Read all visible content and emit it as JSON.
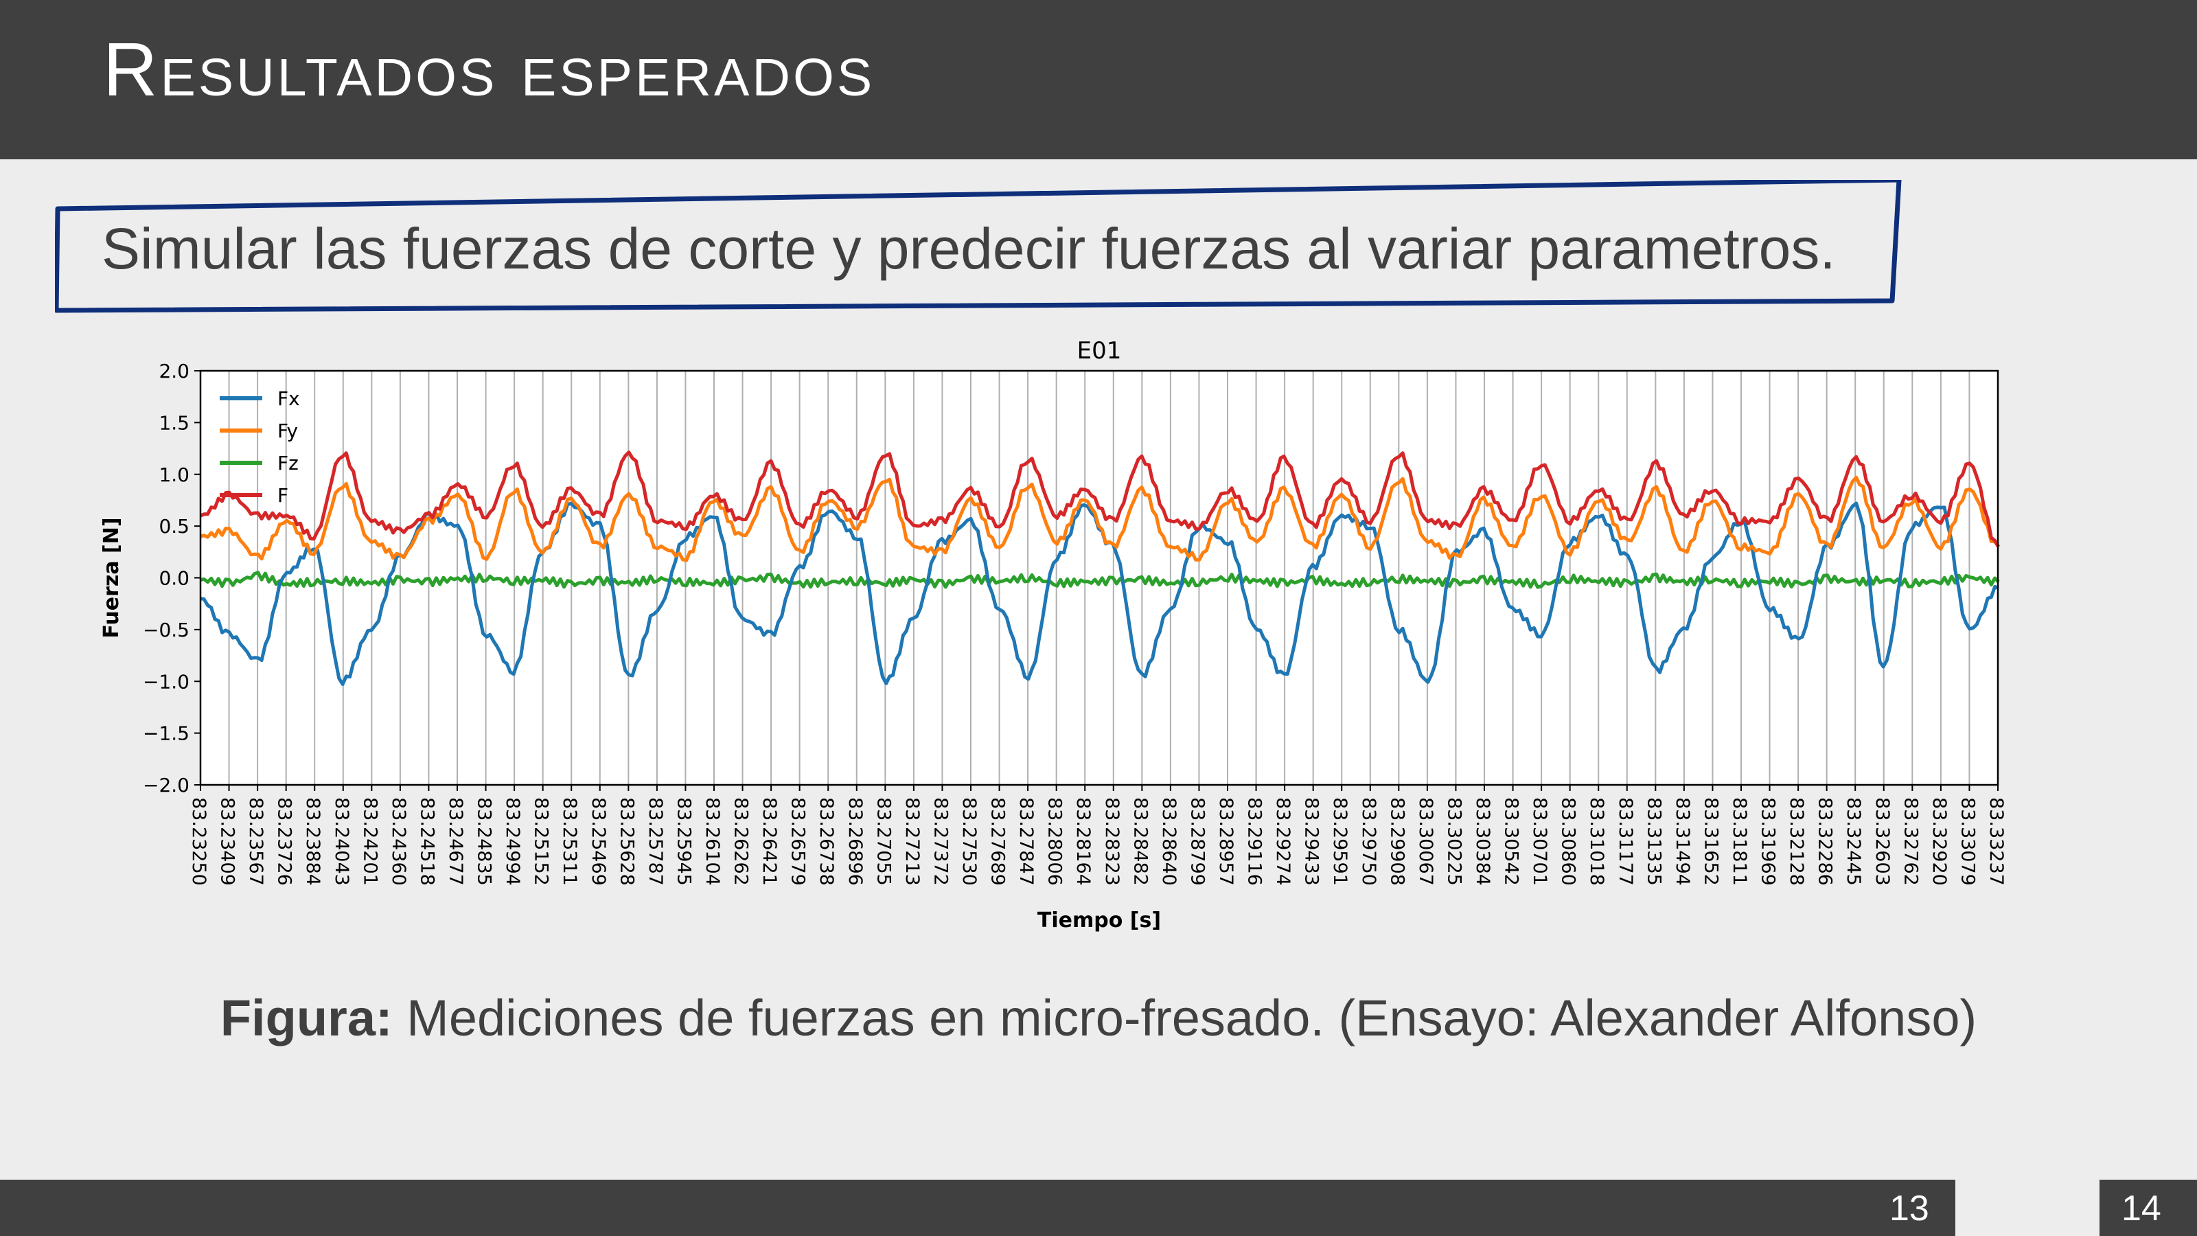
{
  "slide": {
    "title": "Resultados esperados",
    "callout": "Simular las fuerzas de corte y predecir fuerzas al variar parametros.",
    "caption_bold": "Figura:",
    "caption_rest": " Mediciones de fuerzas en micro-fresado. (Ensayo: Alexander Alfonso)",
    "page_current": "13",
    "page_total": "14"
  },
  "colors": {
    "header_bg": "#404040",
    "callout_border": "#0f2f7a",
    "Fx": "#1f77b4",
    "Fy": "#ff7f0e",
    "Fz": "#2ca02c",
    "F": "#d62728"
  },
  "chart_data": {
    "type": "line",
    "title": "E01",
    "xlabel": "Tiempo [s]",
    "ylabel": "Fuerza [N]",
    "ylim": [
      -2.0,
      2.0
    ],
    "xlim": [
      83.2325,
      83.33237
    ],
    "yticks": [
      2.0,
      1.5,
      1.0,
      0.5,
      0.0,
      -0.5,
      -1.0,
      -1.5,
      -2.0
    ],
    "ytick_labels": [
      "2.0",
      "1.5",
      "1.0",
      "0.5",
      "0.0",
      "−0.5",
      "−1.0",
      "−1.5",
      "−2.0"
    ],
    "xtick_labels": [
      "83.23250",
      "83.23409",
      "83.23567",
      "83.23726",
      "83.23884",
      "83.24043",
      "83.24201",
      "83.24360",
      "83.24518",
      "83.24677",
      "83.24835",
      "83.24994",
      "83.25152",
      "83.25311",
      "83.25469",
      "83.25628",
      "83.25787",
      "83.25945",
      "83.26104",
      "83.26262",
      "83.26421",
      "83.26579",
      "83.26738",
      "83.26896",
      "83.27055",
      "83.27213",
      "83.27372",
      "83.27530",
      "83.27689",
      "83.27847",
      "83.28006",
      "83.28164",
      "83.28323",
      "83.28482",
      "83.28640",
      "83.28799",
      "83.28957",
      "83.29116",
      "83.29274",
      "83.29433",
      "83.29591",
      "83.29750",
      "83.29908",
      "83.30067",
      "83.30225",
      "83.30384",
      "83.30542",
      "83.30701",
      "83.30860",
      "83.31018",
      "83.31177",
      "83.31335",
      "83.31494",
      "83.31652",
      "83.31811",
      "83.31969",
      "83.32128",
      "83.32286",
      "83.32445",
      "83.32603",
      "83.32762",
      "83.32920",
      "83.33079",
      "83.33237"
    ],
    "grid": "vertical",
    "legend_position": "top-left",
    "series_t": [
      83.2325,
      83.2341,
      83.2357,
      83.2373,
      83.2388,
      83.2404,
      83.242,
      83.2436,
      83.2452,
      83.2468,
      83.2484,
      83.2499,
      83.2515,
      83.2531,
      83.2547,
      83.2563,
      83.2579,
      83.2595,
      83.261,
      83.2626,
      83.2642,
      83.2658,
      83.2674,
      83.269,
      83.2706,
      83.2721,
      83.2737,
      83.2753,
      83.2769,
      83.2785,
      83.2801,
      83.2816,
      83.2832,
      83.2848,
      83.2864,
      83.288,
      83.2896,
      83.2912,
      83.2927,
      83.2943,
      83.2959,
      83.2975,
      83.2991,
      83.3007,
      83.3023,
      83.3038,
      83.3054,
      83.307,
      83.3086,
      83.3102,
      83.3118,
      83.3134,
      83.3149,
      83.3165,
      83.3181,
      83.3197,
      83.3213,
      83.3229,
      83.3245,
      83.326,
      83.3276,
      83.3292,
      83.3308,
      83.3324
    ],
    "series": [
      {
        "name": "Fx",
        "values": [
          -0.2,
          -0.55,
          -0.8,
          0.05,
          0.3,
          -1.0,
          -0.5,
          0.2,
          0.6,
          0.5,
          -0.55,
          -0.9,
          0.25,
          0.7,
          0.5,
          -0.95,
          -0.3,
          0.4,
          0.6,
          -0.4,
          -0.55,
          0.1,
          0.65,
          0.4,
          -1.0,
          -0.4,
          0.35,
          0.55,
          -0.3,
          -0.95,
          0.2,
          0.7,
          0.3,
          -0.95,
          -0.3,
          0.5,
          0.35,
          -0.5,
          -0.95,
          0.1,
          0.6,
          0.5,
          -0.5,
          -1.0,
          0.25,
          0.45,
          -0.3,
          -0.55,
          0.35,
          0.6,
          0.2,
          -0.9,
          -0.5,
          0.2,
          0.55,
          -0.3,
          -0.6,
          0.3,
          0.7,
          -0.85,
          0.5,
          0.7,
          -0.5,
          -0.1
        ]
      },
      {
        "name": "Fy",
        "values": [
          0.4,
          0.45,
          0.2,
          0.55,
          0.25,
          0.9,
          0.35,
          0.2,
          0.55,
          0.8,
          0.2,
          0.85,
          0.25,
          0.75,
          0.3,
          0.8,
          0.3,
          0.2,
          0.75,
          0.4,
          0.85,
          0.25,
          0.75,
          0.5,
          0.95,
          0.3,
          0.25,
          0.75,
          0.3,
          0.9,
          0.35,
          0.75,
          0.3,
          0.85,
          0.3,
          0.2,
          0.75,
          0.35,
          0.85,
          0.3,
          0.8,
          0.3,
          0.95,
          0.35,
          0.2,
          0.75,
          0.3,
          0.8,
          0.25,
          0.75,
          0.35,
          0.85,
          0.25,
          0.75,
          0.3,
          0.25,
          0.8,
          0.3,
          0.95,
          0.3,
          0.75,
          0.3,
          0.85,
          0.3
        ]
      },
      {
        "name": "Fz",
        "values": [
          -0.02,
          -0.05,
          0.02,
          -0.06,
          -0.04,
          -0.03,
          -0.05,
          -0.02,
          -0.04,
          -0.01,
          0.0,
          -0.03,
          -0.02,
          -0.06,
          -0.03,
          -0.05,
          -0.01,
          -0.04,
          -0.05,
          -0.02,
          0.0,
          -0.06,
          -0.04,
          -0.03,
          -0.05,
          -0.02,
          -0.06,
          -0.01,
          -0.03,
          0.0,
          -0.05,
          -0.04,
          -0.03,
          -0.02,
          -0.05,
          -0.04,
          0.0,
          -0.03,
          -0.05,
          -0.02,
          -0.06,
          -0.04,
          -0.01,
          -0.03,
          -0.05,
          -0.02,
          -0.04,
          -0.06,
          -0.01,
          -0.03,
          -0.05,
          0.0,
          -0.04,
          -0.02,
          -0.05,
          -0.03,
          -0.06,
          -0.01,
          -0.04,
          -0.02,
          -0.05,
          -0.03,
          0.0,
          -0.04
        ]
      },
      {
        "name": "F",
        "values": [
          0.6,
          0.8,
          0.6,
          0.6,
          0.4,
          1.2,
          0.55,
          0.45,
          0.6,
          0.9,
          0.6,
          1.1,
          0.5,
          0.85,
          0.6,
          1.2,
          0.55,
          0.5,
          0.8,
          0.55,
          1.1,
          0.5,
          0.85,
          0.6,
          1.2,
          0.5,
          0.55,
          0.85,
          0.5,
          1.15,
          0.6,
          0.85,
          0.55,
          1.15,
          0.55,
          0.5,
          0.85,
          0.55,
          1.15,
          0.5,
          0.95,
          0.55,
          1.2,
          0.55,
          0.5,
          0.85,
          0.55,
          1.1,
          0.55,
          0.85,
          0.55,
          1.1,
          0.6,
          0.85,
          0.55,
          0.55,
          0.95,
          0.55,
          1.15,
          0.55,
          0.8,
          0.55,
          1.1,
          0.3
        ]
      }
    ]
  }
}
